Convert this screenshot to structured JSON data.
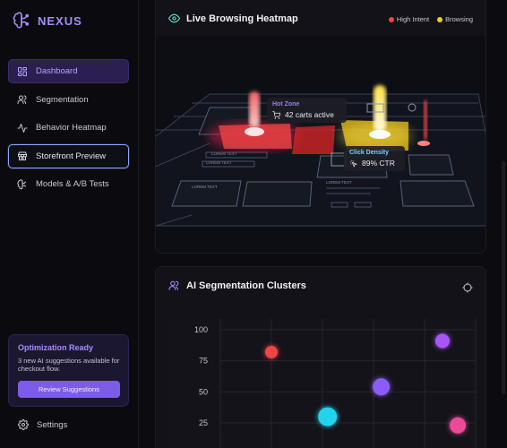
{
  "brand": {
    "name": "NEXUS"
  },
  "sidebar": {
    "items": [
      {
        "label": "Dashboard",
        "icon": "dashboard-icon",
        "state": "active"
      },
      {
        "label": "Segmentation",
        "icon": "users-icon",
        "state": ""
      },
      {
        "label": "Behavior Heatmap",
        "icon": "activity-icon",
        "state": ""
      },
      {
        "label": "Storefront Preview",
        "icon": "store-icon",
        "state": "focused"
      },
      {
        "label": "Models & A/B Tests",
        "icon": "brain-icon",
        "state": ""
      }
    ],
    "promo": {
      "title": "Optimization Ready",
      "text": "3 new AI suggestions available for checkout flow.",
      "button": "Review Suggestions"
    },
    "settings": "Settings"
  },
  "heatmap": {
    "title": "Live Browsing Heatmap",
    "legend": [
      {
        "label": "High Intent",
        "color": "#ef4444"
      },
      {
        "label": "Browsing",
        "color": "#facc15"
      }
    ],
    "tooltip_hot": {
      "title": "Hot Zone",
      "value": "42 carts active"
    },
    "tooltip_click": {
      "title": "Click Density",
      "value": "89% CTR"
    },
    "mock_labels": [
      "LOREM TEXT",
      "LOREM TEXT",
      "LOREM TEXT",
      "LOREM TEXT"
    ]
  },
  "segmentation": {
    "title": "AI Segmentation Clusters",
    "chart_data": {
      "type": "scatter",
      "y_ticks": [
        100,
        75,
        50,
        25
      ],
      "series": [
        {
          "x": 0.2,
          "y": 82,
          "r": 7,
          "color": "#ef4444"
        },
        {
          "x": 0.87,
          "y": 91,
          "r": 8,
          "color": "#a855f7"
        },
        {
          "x": 0.63,
          "y": 54,
          "r": 9.5,
          "color": "#8b5cf6"
        },
        {
          "x": 0.42,
          "y": 30,
          "r": 10.5,
          "color": "#22d3ee"
        },
        {
          "x": 0.93,
          "y": 23,
          "r": 9,
          "color": "#ec4899"
        }
      ],
      "grid": true
    }
  }
}
